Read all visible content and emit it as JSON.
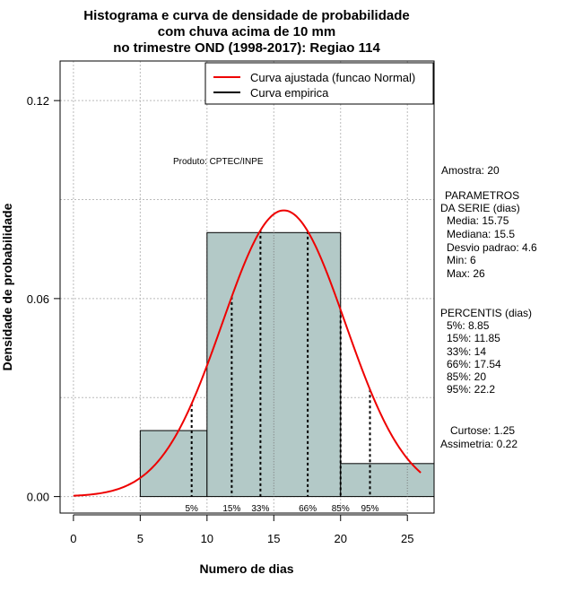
{
  "chart_data": {
    "type": "bar",
    "title_lines": [
      "Histograma e curva de densidade de probabilidade",
      "com chuva acima de 10 mm",
      "no trimestre OND (1998-2017): Regiao 114"
    ],
    "xlabel": "Numero de dias",
    "ylabel": "Densidade de probabilidade",
    "xlim": [
      -1,
      27
    ],
    "ylim": [
      -0.005,
      0.132
    ],
    "xticks": [
      "0",
      "5",
      "10",
      "15",
      "20",
      "25"
    ],
    "yticks": [
      "0.00",
      "0.06",
      "0.12"
    ],
    "grid": true,
    "legend": {
      "position": "top-right",
      "items": [
        {
          "label": "Curva ajustada (funcao Normal)",
          "color": "#ee0000"
        },
        {
          "label": "Curva empirica",
          "color": "#000000"
        }
      ]
    },
    "bins": [
      {
        "x0": 5,
        "x1": 10,
        "density": 0.02
      },
      {
        "x0": 10,
        "x1": 20,
        "density": 0.08
      },
      {
        "x0": 20,
        "x1": 27,
        "density": 0.01
      }
    ],
    "bar_fill": "#b3c9c7",
    "normal_fit": {
      "mean": 15.75,
      "sd": 4.6,
      "x_range": [
        0,
        26
      ],
      "color": "#ee0000"
    },
    "percentile_lines": [
      {
        "label": "5%",
        "x": 8.85
      },
      {
        "label": "15%",
        "x": 11.85
      },
      {
        "label": "33%",
        "x": 14
      },
      {
        "label": "66%",
        "x": 17.54
      },
      {
        "label": "85%",
        "x": 20
      },
      {
        "label": "95%",
        "x": 22.2
      }
    ],
    "annotation": "Produto: CPTEC/INPE"
  },
  "side_panel": {
    "amostra": "Amostra: 20",
    "parametros_title": "PARAMETROS",
    "parametros_sub": "DA SERIE (dias)",
    "parametros": [
      "Media: 15.75",
      "Mediana: 15.5",
      "Desvio padrao: 4.6",
      "Min: 6",
      "Max: 26"
    ],
    "percentis_title": "PERCENTIS (dias)",
    "percentis": [
      "5%: 8.85",
      "15%: 11.85",
      "33%: 14",
      "66%: 17.54",
      "85%: 20",
      "95%: 22.2"
    ],
    "curtose": "Curtose: 1.25",
    "assimetria": "Assimetria: 0.22"
  }
}
